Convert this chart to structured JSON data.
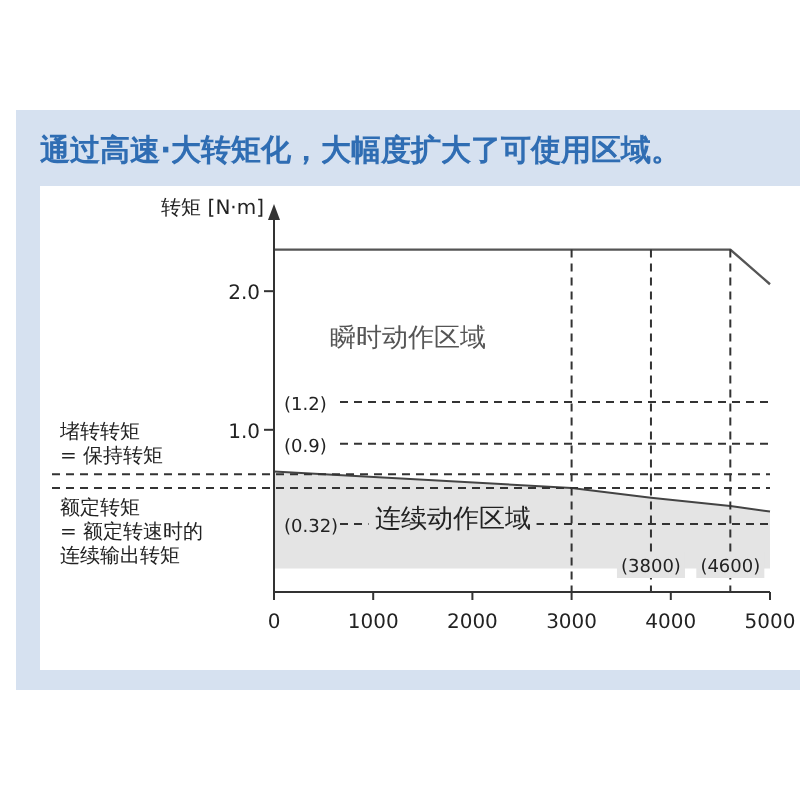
{
  "chart_data": {
    "type": "area",
    "title": "通过高速·大转矩化，大幅度扩大了可使用区域。",
    "ylabel": "转矩 [N·m]",
    "xlim": [
      0,
      5000
    ],
    "ylim": [
      -0.17,
      2.6
    ],
    "xticks": [
      0,
      1000,
      2000,
      3000,
      4000,
      5000
    ],
    "yticks": [
      {
        "value": 1,
        "label": "1.0"
      },
      {
        "value": 2,
        "label": "2.0"
      }
    ],
    "series": [
      {
        "name": "瞬时动作区域",
        "type": "line",
        "color": "#555555",
        "x": [
          0,
          4600,
          5000
        ],
        "values": [
          2.3,
          2.3,
          2.05
        ]
      },
      {
        "name": "连续动作区域",
        "type": "area",
        "color": "#e4e4e4",
        "x": [
          0,
          3000,
          3800,
          4600,
          5000
        ],
        "values": [
          0.7,
          0.58,
          0.51,
          0.45,
          0.41
        ]
      }
    ],
    "ref_lines": [
      {
        "axis": "y",
        "value": 1.2,
        "label": "(1.2)",
        "line_style": "dashed"
      },
      {
        "axis": "y",
        "value": 0.9,
        "label": "(0.9)",
        "line_style": "dashed"
      },
      {
        "axis": "y",
        "value": 0.32,
        "label": "(0.32)",
        "line_style": "dashed"
      },
      {
        "axis": "y",
        "value": 0.68,
        "label": null,
        "line_style": "dashed"
      },
      {
        "axis": "y",
        "value": 0.58,
        "label": null,
        "line_style": "dashed"
      },
      {
        "axis": "x",
        "value": 3000,
        "label": null,
        "line_style": "dashed"
      },
      {
        "axis": "x",
        "value": 3800,
        "label": "(3800)",
        "line_style": "dashed"
      },
      {
        "axis": "x",
        "value": 4600,
        "label": "(4600)",
        "line_style": "dashed"
      }
    ],
    "annotations": [
      "堵转转矩\n= 保持转矩",
      "额定转矩\n= 额定转速时的连续输出转矩"
    ]
  }
}
